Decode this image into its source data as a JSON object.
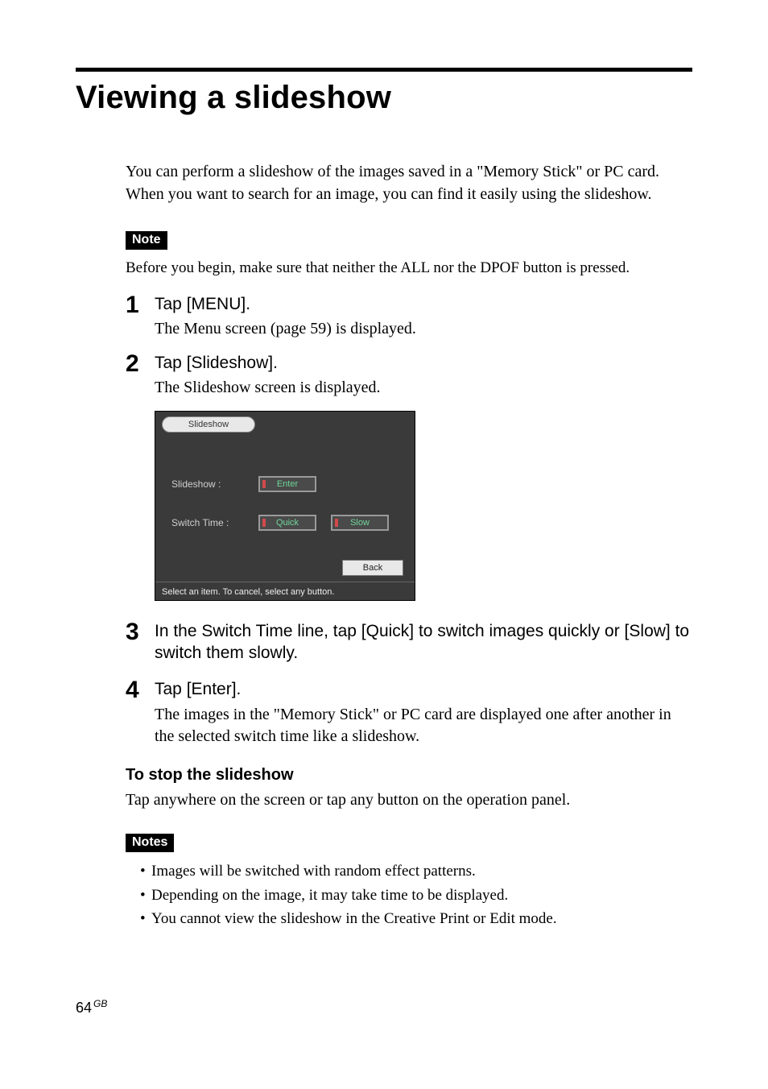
{
  "title": "Viewing a slideshow",
  "intro": "You can perform a slideshow of the images saved in a \"Memory Stick\" or PC card.  When you want to search for an image, you can find it easily using the slideshow.",
  "note_badge": "Note",
  "note_text": "Before you begin, make sure that neither the ALL nor the DPOF button is pressed.",
  "steps": [
    {
      "num": "1",
      "head": "Tap [MENU].",
      "sub": "The Menu screen (page 59) is displayed."
    },
    {
      "num": "2",
      "head": "Tap [Slideshow].",
      "sub": "The Slideshow screen is displayed."
    },
    {
      "num": "3",
      "head": "In the Switch Time line, tap [Quick] to switch images quickly or [Slow] to switch them slowly.",
      "sub": ""
    },
    {
      "num": "4",
      "head": "Tap [Enter].",
      "sub": "The images in the \"Memory Stick\" or PC card are displayed one after another in the selected switch time like a slideshow."
    }
  ],
  "screenshot": {
    "tab": "Slideshow",
    "row1_label": "Slideshow :",
    "row1_btn": "Enter",
    "row2_label": "Switch Time :",
    "row2_btn1": "Quick",
    "row2_btn2": "Slow",
    "back": "Back",
    "status": "Select an item. To cancel,  select any button.",
    "bg": "#3a3a3a",
    "btn_text_color": "#6fd69a"
  },
  "stop_h": "To stop the slideshow",
  "stop_p": "Tap anywhere on the screen or tap any button on the operation panel.",
  "notes_badge": "Notes",
  "notes": [
    "Images will be switched with random effect patterns.",
    "Depending on the image, it may take time to be displayed.",
    "You cannot view the slideshow in the Creative Print or Edit mode."
  ],
  "page_num": "64",
  "page_region": "GB"
}
